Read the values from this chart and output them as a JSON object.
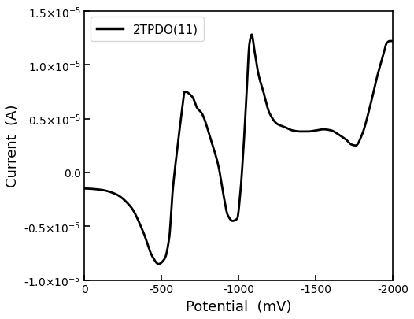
{
  "xlabel": "Potential  (mV)",
  "ylabel": "Current  (A)",
  "legend_label": "2TPDO(11)",
  "xlim": [
    0,
    -2000
  ],
  "ylim": [
    -1e-05,
    1.5e-05
  ],
  "yticks": [
    -1e-05,
    -5e-06,
    0.0,
    5e-06,
    1e-05,
    1.5e-05
  ],
  "xticks": [
    0,
    -500,
    -1000,
    -1500,
    -2000
  ],
  "line_color": "#000000",
  "line_width": 2.0,
  "background_color": "#ffffff",
  "cv_points": [
    [
      0,
      -1.5e-06
    ],
    [
      -100,
      -1.6e-06
    ],
    [
      -200,
      -2e-06
    ],
    [
      -300,
      -3.2e-06
    ],
    [
      -380,
      -5.5e-06
    ],
    [
      -440,
      -7.8e-06
    ],
    [
      -480,
      -8.5e-06
    ],
    [
      -520,
      -8e-06
    ],
    [
      -550,
      -6e-06
    ],
    [
      -570,
      -2e-06
    ],
    [
      -600,
      2e-06
    ],
    [
      -630,
      5.5e-06
    ],
    [
      -650,
      7.5e-06
    ],
    [
      -700,
      7e-06
    ],
    [
      -730,
      6e-06
    ],
    [
      -760,
      5.5e-06
    ],
    [
      -820,
      3e-06
    ],
    [
      -870,
      5e-07
    ],
    [
      -900,
      -2e-06
    ],
    [
      -930,
      -4e-06
    ],
    [
      -960,
      -4.5e-06
    ],
    [
      -990,
      -4.3e-06
    ],
    [
      -1010,
      -2e-06
    ],
    [
      -1030,
      2e-06
    ],
    [
      -1050,
      7e-06
    ],
    [
      -1070,
      1.2e-05
    ],
    [
      -1085,
      1.28e-05
    ],
    [
      -1100,
      1.15e-05
    ],
    [
      -1130,
      9e-06
    ],
    [
      -1160,
      7.5e-06
    ],
    [
      -1200,
      5.5e-06
    ],
    [
      -1250,
      4.5e-06
    ],
    [
      -1300,
      4.2e-06
    ],
    [
      -1350,
      3.9e-06
    ],
    [
      -1400,
      3.8e-06
    ],
    [
      -1450,
      3.8e-06
    ],
    [
      -1500,
      3.9e-06
    ],
    [
      -1550,
      4e-06
    ],
    [
      -1600,
      3.9e-06
    ],
    [
      -1650,
      3.5e-06
    ],
    [
      -1700,
      3e-06
    ],
    [
      -1730,
      2.6e-06
    ],
    [
      -1760,
      2.5e-06
    ],
    [
      -1800,
      3.5e-06
    ],
    [
      -1850,
      6e-06
    ],
    [
      -1900,
      9e-06
    ],
    [
      -1940,
      1.1e-05
    ],
    [
      -1960,
      1.2e-05
    ],
    [
      -1980,
      1.22e-05
    ],
    [
      -2000,
      1.22e-05
    ]
  ]
}
